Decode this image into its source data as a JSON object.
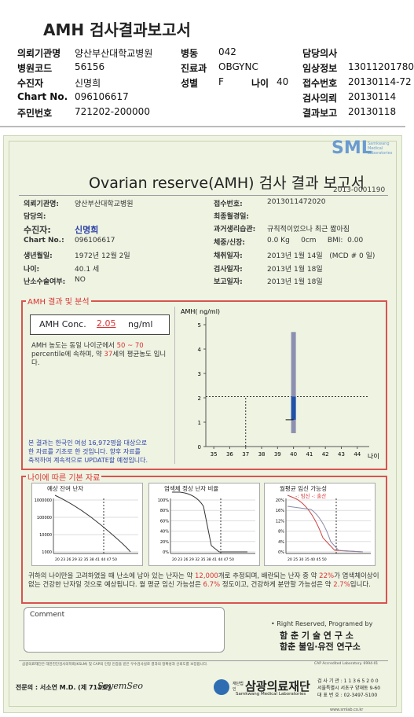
{
  "header": {
    "title": "AMH 검사결과보고서",
    "left": [
      [
        "의뢰기관명",
        "양산부산대학교병원"
      ],
      [
        "병원코드",
        "56156"
      ],
      [
        "수진자",
        "신명희"
      ],
      [
        "Chart No.",
        "096106617"
      ],
      [
        "주민번호",
        "721202-200000"
      ]
    ],
    "mid": [
      [
        "병동",
        "042"
      ],
      [
        "진료과",
        "OBGYNC"
      ],
      [
        "성별",
        "F"
      ]
    ],
    "age": [
      "나이",
      "40"
    ],
    "right_first": "담당의사",
    "right": [
      [
        "임상정보",
        "13011201780"
      ],
      [
        "접수번호",
        "20130114-72"
      ],
      [
        "검사의뢰",
        "20130114"
      ],
      [
        "결과보고",
        "20130118"
      ]
    ]
  },
  "report": {
    "logo": "SML",
    "logo_sub": [
      "Samkwang",
      "Medical",
      "Laboratories"
    ],
    "title": "Ovarian reserve(AMH) 검사 결과 보고서",
    "report_no": "2013-0001190",
    "info_left": [
      [
        "의뢰기관명:",
        "양산부산대학교병원"
      ],
      [
        "담당의:"
      ],
      [
        "수진자:",
        "신명희"
      ],
      [
        "Chart No.:",
        "096106617"
      ],
      [
        "생년월일:",
        "1972년 12월 2일"
      ],
      [
        "나이:",
        "40.1 세"
      ],
      [
        "난소수술여부:",
        "NO"
      ]
    ],
    "info_right": [
      [
        "접수번호:",
        "2013011472020"
      ],
      [
        "최종월경일:"
      ],
      [
        "과거생리습관:",
        "규칙적이었으나 최근 짧아짐"
      ],
      [
        "체중/신장:",
        "0.0 Kg     0cm     BMI:  0.00"
      ],
      [
        "채취일자:",
        "2013년 1월 14일   (MCD # 0 일)"
      ],
      [
        "검사일자:",
        "2013년 1월 18일"
      ],
      [
        "보고일자:",
        "2013년 1월 18일"
      ]
    ],
    "section1": "AMH 결과 및 분석",
    "amh_label": "AMH Conc.",
    "amh_value": "2.05",
    "amh_unit": "ng/ml",
    "desc": [
      "AMH 농도는 동일 나이군에서",
      "50 ~ 70",
      "percentile에 속하며, 약",
      "37",
      "세의 평균농도 입니다."
    ],
    "note": [
      "본 결과는 한국인 여성 16,972명을 대상으로",
      "한 자료를 기초로 한 것입니다. 향후 자료를",
      "축적하여 계속적으로 UPDATE할 예정입니다."
    ],
    "amh_chart": {
      "y_label": "AMH( ng/ml)",
      "x_label": "나이",
      "ylim": [
        0,
        5
      ],
      "yticks": [
        0,
        1,
        2,
        3,
        4,
        5
      ],
      "xlim": [
        34.5,
        44.75
      ],
      "xticks": [
        35,
        36,
        37,
        38,
        39,
        40,
        41,
        42,
        43,
        44
      ],
      "age": 40,
      "value": 2.05,
      "mean_age": 37,
      "range": [
        0.55,
        4.7
      ],
      "box": [
        1.1,
        2.05
      ]
    },
    "section2": "나이에 따른 기본 자료",
    "mini": [
      {
        "title": "예상 잔여 난자",
        "yticks": [
          "1000000",
          "100000",
          "10000",
          "1000"
        ],
        "xticks": "20 23 26 29 32 35 38 41 44 47 50"
      },
      {
        "title": "염색체 정상 난자 비율",
        "yticks": [
          "100%",
          "80%",
          "60%",
          "40%",
          "20%",
          "0%"
        ],
        "xticks": "20 23 26 29 32 35 38 41 44 47 50"
      },
      {
        "title": "월평균 임신 가능성",
        "legend": "-: 임신 -: 출산",
        "yticks": [
          "20%",
          "16%",
          "12%",
          "8%",
          "4%",
          "0%"
        ],
        "xticks": "20  25  30  35  40  45  50"
      }
    ],
    "summary": [
      "귀하의 나이만을 고려하였을 때 난소에 남아 있는 난자는 약",
      "12,000",
      "개로 추정되며, 배란되는 난자 중 약",
      "22%",
      "가 염색체이상이 없는 건강한 난자일 것으로 예상됩니다. 월 평균 임신 가능성은",
      "6.7%",
      "정도이고, 건강하게 분만할 가능성은 약",
      "2.7%",
      "입니다."
    ],
    "comment": "Comment",
    "rights": [
      "• Right Reserved, Programed by",
      "함 춘 기 술 연 구 소",
      "함춘 불임·유전 연구소"
    ],
    "accredit": "삼광의료재단은 대한진단검사의학회(KSLM) 및 CAP의 인정 인증을 받은 우수검사실로 결과의 정확성과 신뢰도를 보장합니다.",
    "cap": "CAP Accredited Laboratory. 6994-01",
    "doctor": "전문의 : 서소연 M.D. (제 711호)",
    "signature": "SoyemSeo",
    "foundation_pre": "재단법인",
    "foundation": "삼광의료재단",
    "foundation_en": "Samkwang Medical Laboratories",
    "contact": [
      "검 사 기 관 : 1 1 3 6 5 2 0 0",
      "서울특별시 서초구 양재동 9-60",
      "대 표 번 호 : 02-3497-5100"
    ],
    "url": "www.smlab.co.kr"
  }
}
